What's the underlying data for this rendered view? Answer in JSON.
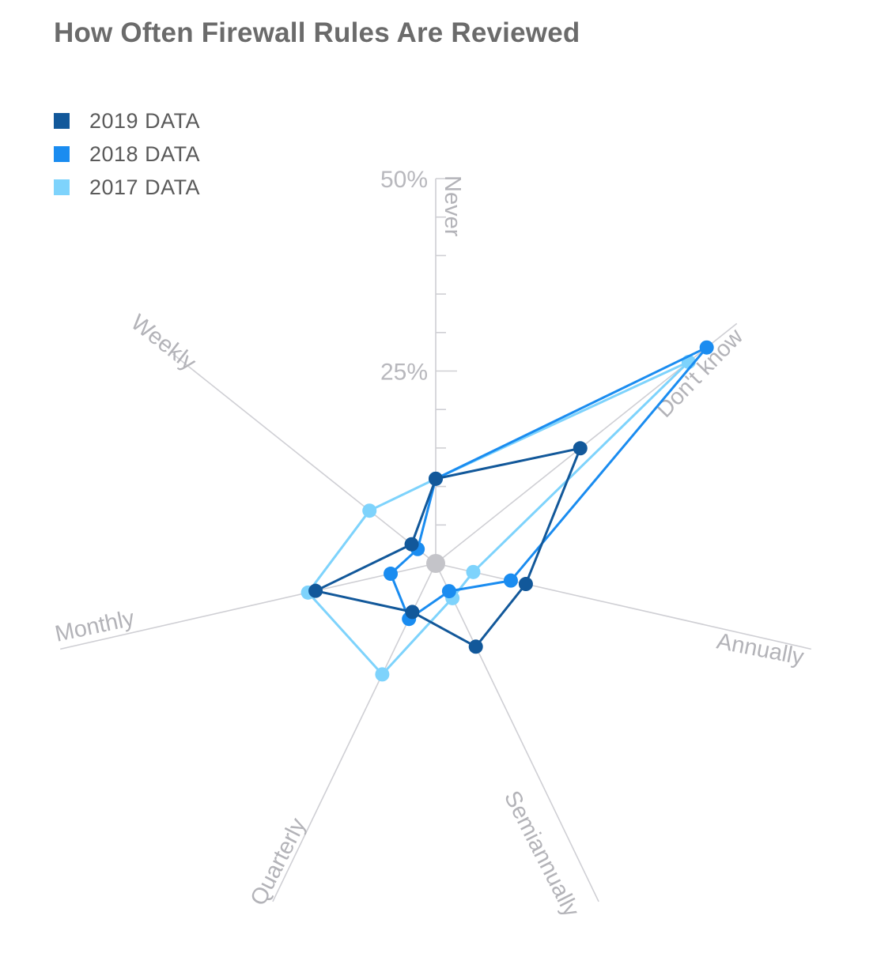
{
  "title": "How Often Firewall Rules Are Reviewed",
  "colors": {
    "axis": "#cfcfd4",
    "label": "#b3b3b8",
    "center": "#c4c4c9"
  },
  "chart_data": {
    "type": "radar",
    "title": "How Often Firewall Rules Are Reviewed",
    "categories": [
      "Never",
      "Don't know",
      "Annually",
      "Semiannually",
      "Quarterly",
      "Monthly",
      "Weekly"
    ],
    "tick_labels": [
      "25%",
      "50%"
    ],
    "rmax": 50,
    "legend_position": "top-left",
    "series": [
      {
        "name": "2019 DATA",
        "color": "#12589a",
        "values": [
          11,
          24,
          12,
          12,
          7,
          16,
          4
        ]
      },
      {
        "name": "2018 DATA",
        "color": "#1a8cf0",
        "values": [
          11,
          45,
          10,
          4,
          8,
          6,
          3
        ]
      },
      {
        "name": "2017 DATA",
        "color": "#7ed3fc",
        "values": [
          11,
          42,
          5,
          5,
          16,
          17,
          11
        ]
      }
    ]
  }
}
